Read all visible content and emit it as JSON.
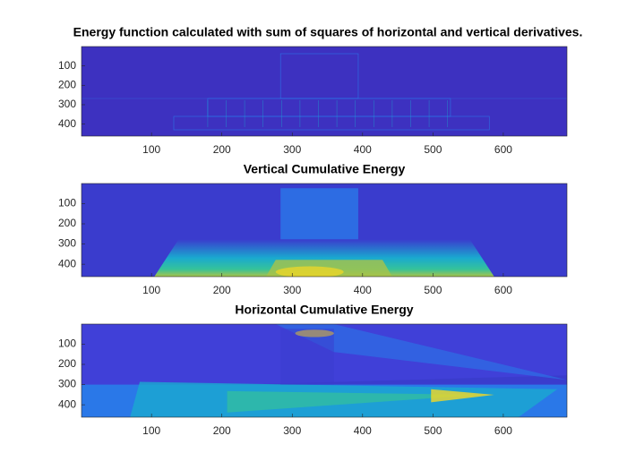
{
  "chart_data": [
    {
      "type": "image",
      "title": "Energy function calculated with sum of squares of horizontal and vertical derivatives.",
      "colormap": [
        "#352a87",
        "#3a3ccd",
        "#2a78e8",
        "#1aa9cf",
        "#35c29a",
        "#a8c34a",
        "#f5d824"
      ],
      "intensity": "low",
      "xlim": [
        0.5,
        690.5
      ],
      "ylim": [
        0.5,
        461.5
      ],
      "ydir": "reverse",
      "xticks": [
        100,
        200,
        300,
        400,
        500,
        600
      ],
      "yticks": [
        100,
        200,
        300,
        400
      ]
    },
    {
      "type": "image",
      "title": "Vertical Cumulative Energy",
      "colormap": [
        "#352a87",
        "#3a3ccd",
        "#2a78e8",
        "#1aa9cf",
        "#35c29a",
        "#a8c34a",
        "#f5d824"
      ],
      "intensity": "vertical",
      "xlim": [
        0.5,
        690.5
      ],
      "ylim": [
        0.5,
        461.5
      ],
      "ydir": "reverse",
      "xticks": [
        100,
        200,
        300,
        400,
        500,
        600
      ],
      "yticks": [
        100,
        200,
        300,
        400
      ]
    },
    {
      "type": "image",
      "title": "Horizontal Cumulative Energy",
      "colormap": [
        "#352a87",
        "#3a3ccd",
        "#2a78e8",
        "#1aa9cf",
        "#35c29a",
        "#a8c34a",
        "#f5d824"
      ],
      "intensity": "horizontal",
      "xlim": [
        0.5,
        690.5
      ],
      "ylim": [
        0.5,
        461.5
      ],
      "ydir": "reverse",
      "xticks": [
        100,
        200,
        300,
        400,
        500,
        600
      ],
      "yticks": [
        100,
        200,
        300,
        400
      ]
    }
  ]
}
